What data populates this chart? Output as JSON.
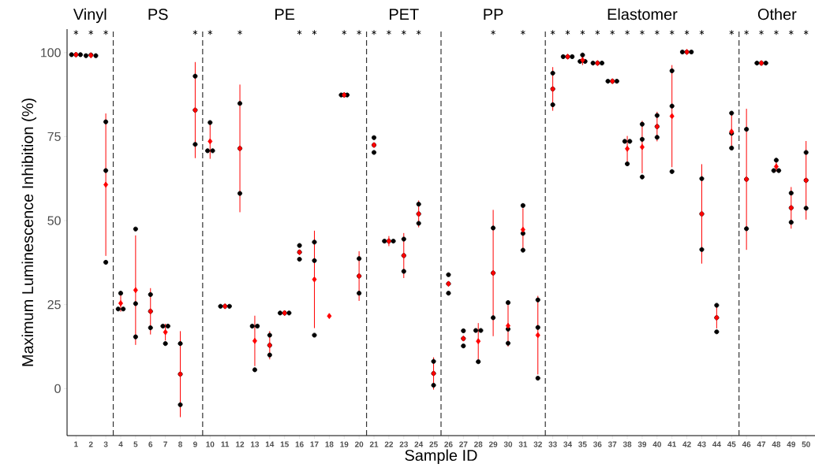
{
  "chart_data": {
    "type": "scatter",
    "xlabel": "Sample ID",
    "ylabel": "Maximum Luminescence Inhibition (%)",
    "xlim": [
      0.4,
      50.6
    ],
    "ylim": [
      -14,
      107
    ],
    "xticks": [
      1,
      2,
      3,
      4,
      5,
      6,
      7,
      8,
      9,
      10,
      11,
      12,
      13,
      14,
      15,
      16,
      17,
      18,
      19,
      20,
      21,
      22,
      23,
      24,
      25,
      26,
      27,
      28,
      29,
      30,
      31,
      32,
      33,
      34,
      35,
      36,
      37,
      38,
      39,
      40,
      41,
      42,
      43,
      44,
      45,
      46,
      47,
      48,
      49,
      50
    ],
    "yticks": [
      0,
      25,
      50,
      75,
      100
    ],
    "annotations": [
      "Vinyl",
      "PS",
      "PE",
      "PET",
      "PP",
      "Elastomer",
      "Other"
    ],
    "series": [
      {
        "marker": "circle",
        "color": "#000000",
        "x": [
          0.7,
          1,
          1.3,
          1.67,
          2,
          2.33,
          3,
          3,
          3,
          4,
          3.83,
          4.17,
          5,
          5,
          5,
          6,
          6,
          6,
          6.83,
          7.17,
          7,
          8,
          8,
          8,
          9,
          9,
          9,
          10,
          9.83,
          10.17,
          10.7,
          11,
          11.3,
          12,
          12,
          12,
          12.83,
          13.17,
          13,
          14,
          14,
          14,
          14.7,
          15,
          15.3,
          16,
          16,
          16,
          17,
          17,
          17,
          18.8,
          19,
          19.2,
          20,
          20,
          20,
          21,
          21,
          21,
          21.7,
          22,
          22.3,
          23,
          23,
          23,
          24,
          24,
          24,
          25,
          25,
          25,
          26,
          26,
          26,
          27,
          27,
          27,
          27.83,
          28.17,
          28,
          29,
          29,
          29,
          30,
          30,
          30,
          31,
          31,
          31,
          32,
          32,
          32,
          33,
          33,
          33,
          33.7,
          34,
          34.3,
          35,
          34.83,
          35.17,
          35.7,
          36,
          36.3,
          36.7,
          37,
          37.3,
          37.83,
          38.17,
          38,
          39,
          39,
          39,
          40,
          40,
          40,
          41,
          41,
          41,
          41.7,
          42,
          42.3,
          43,
          43,
          43,
          44,
          44,
          44,
          45,
          45,
          45,
          46,
          46,
          46,
          46.7,
          47,
          47.3,
          48,
          47.83,
          48.17,
          49,
          49,
          49,
          50,
          50,
          50
        ],
        "values": [
          99.4,
          99.4,
          99.4,
          99.1,
          99.3,
          99.1,
          79.4,
          64.9,
          37.6,
          28.4,
          23.7,
          23.7,
          47.5,
          25.3,
          15.4,
          28.0,
          23.0,
          18.1,
          18.6,
          18.6,
          13.4,
          13.4,
          4.3,
          -4.8,
          93.0,
          82.9,
          72.7,
          79.2,
          70.8,
          70.8,
          24.5,
          24.5,
          24.5,
          84.9,
          71.5,
          58.1,
          18.6,
          18.6,
          5.6,
          15.9,
          12.9,
          10.0,
          22.5,
          22.5,
          22.5,
          42.6,
          40.6,
          38.5,
          43.6,
          38.1,
          15.9,
          87.4,
          87.4,
          87.4,
          38.7,
          33.5,
          28.4,
          74.7,
          72.5,
          70.3,
          43.9,
          43.9,
          43.9,
          44.5,
          39.6,
          34.9,
          54.9,
          52.0,
          49.2,
          8.1,
          4.5,
          1.0,
          33.9,
          31.2,
          28.4,
          17.2,
          14.9,
          12.7,
          17.3,
          17.3,
          8.0,
          47.8,
          34.4,
          21.1,
          25.6,
          17.7,
          13.5,
          54.5,
          46.2,
          41.2,
          26.4,
          18.2,
          3.1,
          93.9,
          89.2,
          84.5,
          98.8,
          98.8,
          98.8,
          99.3,
          97.4,
          97.4,
          96.9,
          96.9,
          96.9,
          91.5,
          91.5,
          91.5,
          73.6,
          73.6,
          66.9,
          78.7,
          74.2,
          63.0,
          81.3,
          78.0,
          74.8,
          94.6,
          84.1,
          64.6,
          100.2,
          100.2,
          100.2,
          62.5,
          52.0,
          41.4,
          24.8,
          21.1,
          16.9,
          82.0,
          76.0,
          71.6,
          77.2,
          62.3,
          47.6,
          96.9,
          96.9,
          96.9,
          68.0,
          64.9,
          64.9,
          58.2,
          53.8,
          49.5,
          70.3,
          62.0,
          53.7
        ]
      },
      {
        "marker": "diamond",
        "color": "#ff0000",
        "x": [
          1,
          2,
          3,
          4,
          5,
          6,
          7,
          8,
          9,
          10,
          11,
          12,
          13,
          14,
          15,
          16,
          17,
          18,
          19,
          20,
          21,
          22,
          23,
          24,
          25,
          26,
          27,
          28,
          29,
          30,
          31,
          32,
          33,
          34,
          35,
          36,
          37,
          38,
          39,
          40,
          41,
          42,
          43,
          44,
          45,
          46,
          47,
          48,
          49,
          50
        ],
        "values": [
          99.4,
          99.2,
          60.7,
          25.4,
          29.3,
          23.0,
          16.8,
          4.3,
          82.9,
          73.6,
          24.5,
          71.5,
          14.2,
          12.9,
          22.5,
          40.6,
          32.5,
          21.6,
          87.4,
          33.5,
          72.5,
          43.9,
          39.6,
          52.0,
          4.5,
          31.2,
          14.9,
          14.1,
          34.4,
          18.7,
          47.3,
          15.9,
          89.2,
          98.8,
          97.8,
          96.9,
          91.5,
          71.4,
          71.9,
          78.0,
          81.1,
          100.2,
          52.0,
          21.1,
          76.5,
          62.3,
          96.9,
          66.1,
          53.8,
          62.0
        ],
        "errors": [
          null,
          null,
          21.2,
          2.5,
          16.3,
          6.9,
          2.5,
          12.8,
          14.3,
          5.2,
          null,
          19.0,
          7.5,
          4.2,
          null,
          null,
          14.5,
          null,
          null,
          7.4,
          null,
          1.5,
          6.7,
          4.0,
          4.8,
          null,
          null,
          5.4,
          18.8,
          6.2,
          6.4,
          11.7,
          6.5,
          null,
          1.5,
          null,
          null,
          3.8,
          7.8,
          4.4,
          15.2,
          null,
          14.8,
          3.2,
          5.0,
          21.0,
          null,
          1.5,
          6.2,
          11.7
        ]
      },
      {
        "marker": "cross",
        "color": "#000000",
        "x": [
          1,
          2,
          3,
          9,
          10,
          12,
          16,
          17,
          19,
          20,
          21,
          22,
          23,
          24,
          29,
          31,
          33,
          34,
          35,
          36,
          37,
          38,
          39,
          40,
          41,
          42,
          43,
          45,
          46,
          47,
          48,
          49,
          50
        ],
        "values": [
          106,
          106,
          106,
          106,
          106,
          106,
          106,
          106,
          106,
          106,
          106,
          106,
          106,
          106,
          106,
          106,
          106,
          106,
          106,
          106,
          106,
          106,
          106,
          106,
          106,
          106,
          106,
          106,
          106,
          106,
          106,
          106,
          106
        ]
      }
    ],
    "ref_lines": [
      {
        "axis": "x",
        "value": 3.5,
        "color": "#333333",
        "line_style": "dashed"
      },
      {
        "axis": "x",
        "value": 9.5,
        "color": "#333333",
        "line_style": "dashed"
      },
      {
        "axis": "x",
        "value": 20.5,
        "color": "#333333",
        "line_style": "dashed"
      },
      {
        "axis": "x",
        "value": 25.5,
        "color": "#333333",
        "line_style": "dashed"
      },
      {
        "axis": "x",
        "value": 32.5,
        "color": "#333333",
        "line_style": "dashed"
      },
      {
        "axis": "x",
        "value": 45.5,
        "color": "#333333",
        "line_style": "dashed"
      }
    ]
  }
}
